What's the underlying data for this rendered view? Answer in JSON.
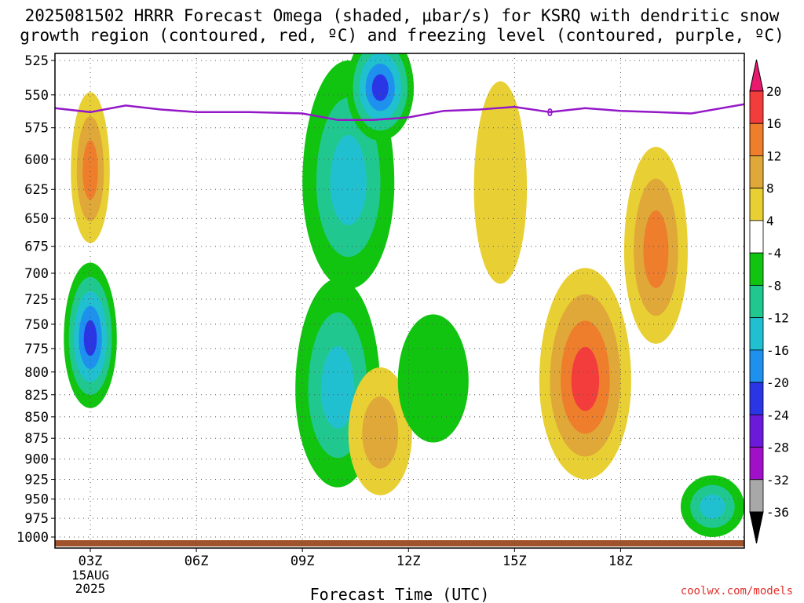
{
  "title_line1": "2025081502 HRRR Forecast Omega (shaded, μbar/s) for KSRQ with dendritic snow",
  "title_line2": "growth region (contoured, red, ºC) and freezing level (contoured, purple, ºC)",
  "credit": "coolwx.com/models",
  "chart_data": {
    "type": "time-height contour",
    "xlabel": "Forecast Time (UTC)",
    "x_range_hours": [
      2.0,
      21.5
    ],
    "x_ticks": [
      {
        "hour": 3,
        "label": "03Z",
        "sub": [
          "15AUG",
          "2025"
        ]
      },
      {
        "hour": 6,
        "label": "06Z"
      },
      {
        "hour": 9,
        "label": "09Z"
      },
      {
        "hour": 12,
        "label": "12Z"
      },
      {
        "hour": 15,
        "label": "15Z"
      },
      {
        "hour": 18,
        "label": "18Z"
      }
    ],
    "y_ticks_hpa": [
      525,
      550,
      575,
      600,
      625,
      650,
      675,
      700,
      725,
      750,
      775,
      800,
      825,
      850,
      875,
      900,
      925,
      950,
      975,
      1000
    ],
    "y_range_hpa": [
      520,
      1015
    ],
    "y_scale": "log-pressure",
    "grid": "dotted",
    "colorbar": {
      "ticks": [
        "20",
        "16",
        "12",
        "8",
        "4",
        "-4",
        "-8",
        "-12",
        "-16",
        "-20",
        "-24",
        "-28",
        "-32",
        "-36"
      ],
      "colors": [
        "#e8196e",
        "#f33d3d",
        "#ee7d2c",
        "#e0a838",
        "#e8d034",
        "#ffffff",
        "#10c410",
        "#20c890",
        "#20c0d0",
        "#1e90ee",
        "#2a36e6",
        "#6a1ad8",
        "#a010c8",
        "#a8a8a8",
        "#000000"
      ]
    },
    "freezing_level": {
      "label": "0",
      "color": "#9418c8",
      "points": [
        [
          2.0,
          560
        ],
        [
          3.0,
          563
        ],
        [
          4.0,
          558
        ],
        [
          5.0,
          561
        ],
        [
          6.0,
          563
        ],
        [
          7.5,
          563
        ],
        [
          9.0,
          564
        ],
        [
          10.0,
          569
        ],
        [
          11.0,
          569
        ],
        [
          12.0,
          567
        ],
        [
          13.0,
          562
        ],
        [
          14.0,
          561
        ],
        [
          15.0,
          559
        ],
        [
          16.0,
          563
        ],
        [
          17.0,
          560
        ],
        [
          18.0,
          562
        ],
        [
          19.0,
          563
        ],
        [
          20.0,
          564
        ],
        [
          21.5,
          557
        ]
      ]
    },
    "omega_regions": [
      {
        "center": [
          3.0,
          610
        ],
        "radius": [
          0.55,
          62
        ],
        "levels": [
          4,
          8,
          12
        ]
      },
      {
        "center": [
          3.0,
          765
        ],
        "radius": [
          0.75,
          75
        ],
        "levels": [
          -4,
          -8,
          -12,
          -16,
          -20
        ]
      },
      {
        "center": [
          10.3,
          620
        ],
        "radius": [
          1.3,
          95
        ],
        "levels": [
          -4,
          -8,
          -12
        ]
      },
      {
        "center": [
          10.0,
          820
        ],
        "radius": [
          1.2,
          115
        ],
        "levels": [
          -4,
          -8,
          -12
        ]
      },
      {
        "center": [
          11.2,
          545
        ],
        "radius": [
          0.95,
          40
        ],
        "levels": [
          -4,
          -8,
          -12,
          -16,
          -20
        ]
      },
      {
        "center": [
          11.2,
          870
        ],
        "radius": [
          0.9,
          75
        ],
        "levels": [
          4,
          8
        ]
      },
      {
        "center": [
          12.7,
          810
        ],
        "radius": [
          1.0,
          70
        ],
        "levels": [
          -4
        ]
      },
      {
        "center": [
          14.6,
          625
        ],
        "radius": [
          0.75,
          85
        ],
        "levels": [
          4
        ]
      },
      {
        "center": [
          17.0,
          810
        ],
        "radius": [
          1.3,
          115
        ],
        "levels": [
          4,
          8,
          12,
          16
        ]
      },
      {
        "center": [
          19.0,
          680
        ],
        "radius": [
          0.9,
          90
        ],
        "levels": [
          4,
          8,
          12
        ]
      },
      {
        "center": [
          20.6,
          960
        ],
        "radius": [
          0.9,
          40
        ],
        "levels": [
          -4,
          -8,
          -12
        ]
      }
    ]
  }
}
